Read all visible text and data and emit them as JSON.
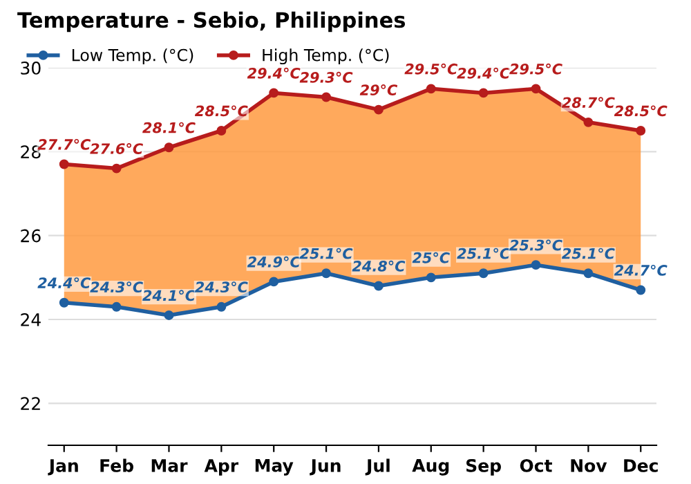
{
  "chart_data": {
    "type": "line",
    "title": "Temperature - Sebio, Philippines",
    "categories": [
      "Jan",
      "Feb",
      "Mar",
      "Apr",
      "May",
      "Jun",
      "Jul",
      "Aug",
      "Sep",
      "Oct",
      "Nov",
      "Dec"
    ],
    "series": [
      {
        "name": "Low Temp. (°C)",
        "color": "#1f5fa0",
        "values": [
          24.4,
          24.3,
          24.1,
          24.3,
          24.9,
          25.1,
          24.8,
          25,
          25.1,
          25.3,
          25.1,
          24.7
        ],
        "value_labels": [
          "24.4°C",
          "24.3°C",
          "24.1°C",
          "24.3°C",
          "24.9°C",
          "25.1°C",
          "24.8°C",
          "25°C",
          "25.1°C",
          "25.3°C",
          "25.1°C",
          "24.7°C"
        ]
      },
      {
        "name": "High Temp. (°C)",
        "color": "#b71c1c",
        "values": [
          27.7,
          27.6,
          28.1,
          28.5,
          29.4,
          29.3,
          29,
          29.5,
          29.4,
          29.5,
          28.7,
          28.5
        ],
        "value_labels": [
          "27.7°C",
          "27.6°C",
          "28.1°C",
          "28.5°C",
          "29.4°C",
          "29.3°C",
          "29°C",
          "29.5°C",
          "29.4°C",
          "29.5°C",
          "28.7°C",
          "28.5°C"
        ],
        "lower": [
          24.4,
          24.3,
          24.1,
          24.3,
          24.9,
          25.1,
          24.8,
          25,
          25.1,
          25.3,
          25.1,
          24.7
        ],
        "upper": [
          27.7,
          27.6,
          28.1,
          28.5,
          29.4,
          29.3,
          29,
          29.5,
          29.4,
          29.5,
          28.7,
          28.5
        ]
      }
    ],
    "ylim": [
      21,
      30
    ],
    "yticks": [
      22,
      24,
      26,
      28,
      30
    ],
    "grid": "y",
    "legend": "top left",
    "marker": "circle",
    "line_style": "solid"
  }
}
